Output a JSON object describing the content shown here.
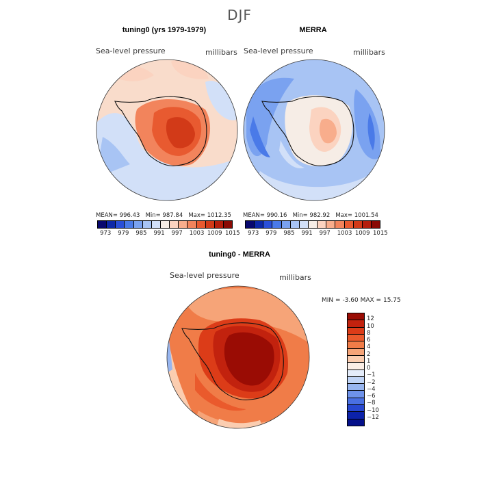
{
  "figure": {
    "title": "DJF"
  },
  "panels": {
    "model": {
      "title": "tuning0 (yrs 1979-1979)",
      "variable": "Sea-level pressure",
      "units": "millibars",
      "stats": {
        "mean": "996.43",
        "min": "987.84",
        "max": "1012.35"
      }
    },
    "obs": {
      "title": "MERRA",
      "variable": "Sea-level pressure",
      "units": "millibars",
      "stats": {
        "mean": "990.16",
        "min": "982.92",
        "max": "1001.54"
      }
    },
    "diff": {
      "title": "tuning0 - MERRA",
      "variable": "Sea-level pressure",
      "units": "millibars",
      "stats": {
        "min": "-3.60",
        "max": "15.75"
      }
    }
  },
  "labels": {
    "mean": "MEAN=",
    "min": "Min=",
    "max": "Max=",
    "diff_min": "MIN =",
    "diff_max": "MAX ="
  },
  "colorbars": {
    "absolute": {
      "ticks": [
        "973",
        "979",
        "985",
        "991",
        "997",
        "1003",
        "1009",
        "1015"
      ],
      "colors": [
        "#08086e",
        "#0d28a8",
        "#2a4fd8",
        "#4a7ae8",
        "#7aa2f0",
        "#a8c4f4",
        "#d2e0f8",
        "#f6ede6",
        "#fbd3c0",
        "#f8ad8c",
        "#f2845c",
        "#e85a30",
        "#d23a18",
        "#b41e0c",
        "#8a0a04"
      ]
    },
    "difference": {
      "ticks": [
        "12",
        "10",
        "8",
        "6",
        "4",
        "2",
        "1",
        "0",
        "−1",
        "−2",
        "−4",
        "−6",
        "−8",
        "−10",
        "−12"
      ],
      "colors": [
        "#9a0c04",
        "#c2220e",
        "#dc3c18",
        "#ea5a2c",
        "#f07c48",
        "#f6a478",
        "#fbcdb0",
        "#fbeee6",
        "#e4ecfa",
        "#c0d4f6",
        "#98b6f0",
        "#6e92ea",
        "#4a70e2",
        "#2848d0",
        "#0c22aa",
        "#04108a"
      ]
    }
  },
  "map": {
    "region": "Antarctica",
    "projection": "south-polar-stereographic"
  }
}
